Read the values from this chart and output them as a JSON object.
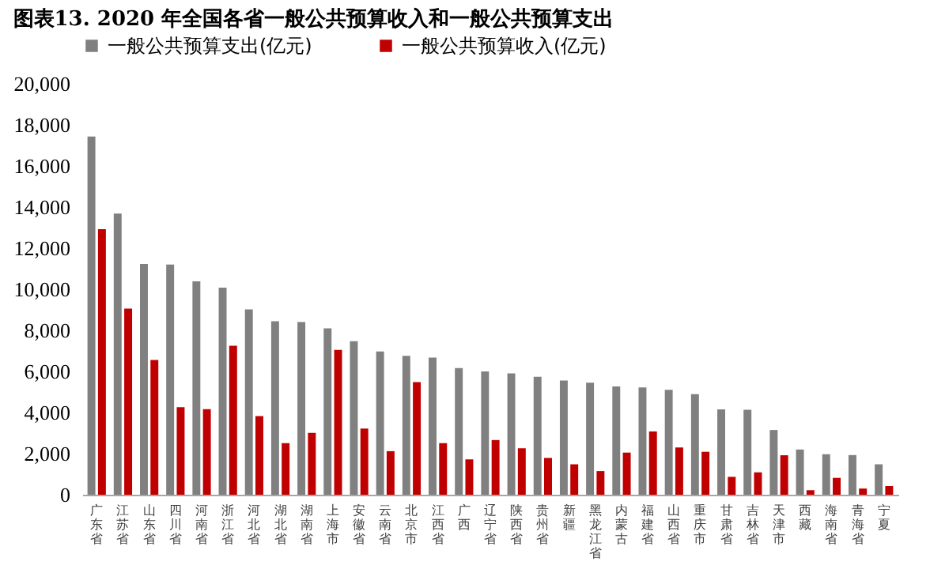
{
  "chart_data": {
    "type": "bar",
    "title": "图表13. 2020 年全国各省一般公共预算收入和一般公共预算支出",
    "categories": [
      "广东省",
      "江苏省",
      "山东省",
      "四川省",
      "河南省",
      "浙江省",
      "河北省",
      "湖北省",
      "湖南省",
      "上海市",
      "安徽省",
      "云南省",
      "北京市",
      "江西省",
      "广西",
      "辽宁省",
      "陕西省",
      "贵州省",
      "新疆",
      "黑龙江省",
      "内蒙古",
      "福建省",
      "山西省",
      "重庆市",
      "甘肃省",
      "吉林省",
      "天津市",
      "西藏",
      "海南省",
      "青海省",
      "宁夏"
    ],
    "series": [
      {
        "name": "一般公共预算支出(亿元)",
        "color": "#808080",
        "values": [
          17430,
          13680,
          11230,
          11200,
          10380,
          10080,
          9020,
          8440,
          8400,
          8100,
          7470,
          6970,
          6760,
          6670,
          6160,
          6000,
          5900,
          5740,
          5560,
          5450,
          5270,
          5220,
          5110,
          4890,
          4150,
          4130,
          3150,
          2200,
          1970,
          1930,
          1480
        ]
      },
      {
        "name": "一般公共预算收入(亿元)",
        "color": "#c00000",
        "values": [
          12920,
          9060,
          6560,
          4260,
          4160,
          7250,
          3830,
          2510,
          3010,
          7050,
          3220,
          2120,
          5480,
          2510,
          1720,
          2660,
          2260,
          1790,
          1480,
          1150,
          2050,
          3080,
          2300,
          2090,
          870,
          1090,
          1920,
          220,
          820,
          300,
          420
        ]
      }
    ],
    "ylim": [
      0,
      20000
    ],
    "yticks": [
      0,
      {
        "value": 2000,
        "label": "2,000"
      },
      {
        "value": 4000,
        "label": "4,000"
      },
      {
        "value": 6000,
        "label": "6,000"
      },
      {
        "value": 8000,
        "label": "8,000"
      },
      {
        "value": 10000,
        "label": "10,000"
      },
      {
        "value": 12000,
        "label": "12,000"
      },
      {
        "value": 14000,
        "label": "14,000"
      },
      {
        "value": 16000,
        "label": "16,000"
      },
      {
        "value": 18000,
        "label": "18,000"
      },
      {
        "value": 20000,
        "label": "20,000"
      }
    ],
    "grid": false,
    "legend": "top"
  }
}
